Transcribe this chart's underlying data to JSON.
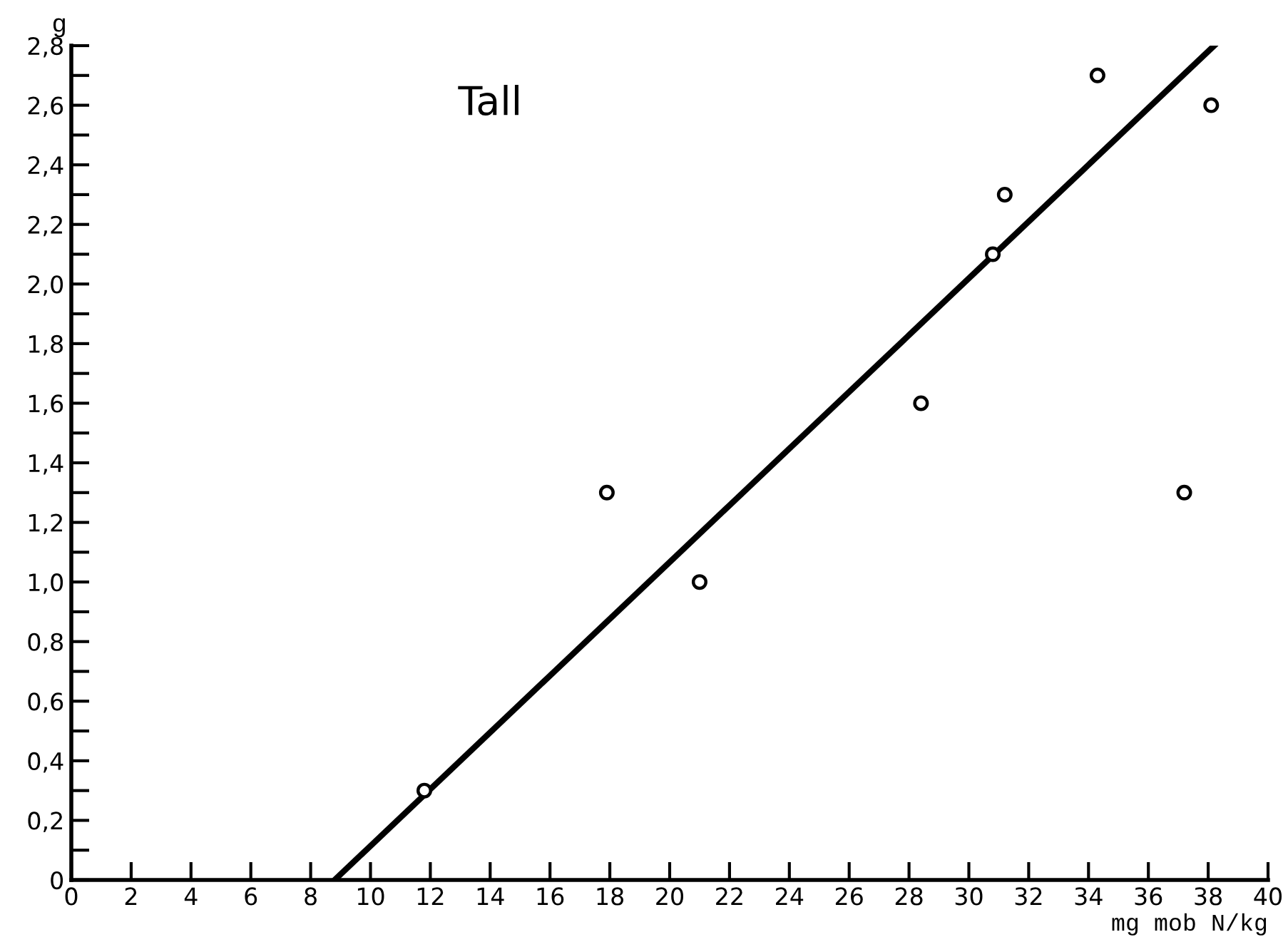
{
  "chart_data": {
    "type": "scatter",
    "title": "Tall",
    "xlabel": "mg mob N/kg",
    "ylabel": "g",
    "series": [
      {
        "color": "#000000",
        "marker": "circle",
        "x": [
          11.8,
          17.9,
          21.0,
          28.4,
          30.8,
          31.2,
          34.3,
          37.2,
          38.1
        ],
        "values": [
          0.3,
          1.3,
          1.0,
          1.6,
          2.1,
          2.3,
          2.7,
          1.3,
          2.6
        ]
      },
      {
        "type": "line",
        "color": "#000000",
        "x": [
          8.8,
          38.2
        ],
        "values": [
          0.0,
          2.8
        ]
      }
    ],
    "xlim": [
      0,
      40
    ],
    "ylim": [
      0,
      2.8
    ],
    "xticks": [
      0,
      2,
      4,
      6,
      8,
      10,
      12,
      14,
      16,
      18,
      20,
      22,
      24,
      26,
      28,
      30,
      32,
      34,
      36,
      38,
      40
    ],
    "yticks": [
      {
        "value": 0,
        "label": "0"
      },
      {
        "value": 0.1,
        "label": null
      },
      {
        "value": 0.2,
        "label": "0,2"
      },
      {
        "value": 0.3,
        "label": null
      },
      {
        "value": 0.4,
        "label": "0,4"
      },
      {
        "value": 0.5,
        "label": null
      },
      {
        "value": 0.6,
        "label": "0,6"
      },
      {
        "value": 0.7,
        "label": null
      },
      {
        "value": 0.8,
        "label": "0,8"
      },
      {
        "value": 0.9,
        "label": null
      },
      {
        "value": 1.0,
        "label": "1,0"
      },
      {
        "value": 1.1,
        "label": null
      },
      {
        "value": 1.2,
        "label": "1,2"
      },
      {
        "value": 1.3,
        "label": null
      },
      {
        "value": 1.4,
        "label": "1,4"
      },
      {
        "value": 1.5,
        "label": null
      },
      {
        "value": 1.6,
        "label": "1,6"
      },
      {
        "value": 1.7,
        "label": null
      },
      {
        "value": 1.8,
        "label": "1,8"
      },
      {
        "value": 1.9,
        "label": null
      },
      {
        "value": 2.0,
        "label": "2,0"
      },
      {
        "value": 2.1,
        "label": null
      },
      {
        "value": 2.2,
        "label": "2,2"
      },
      {
        "value": 2.3,
        "label": null
      },
      {
        "value": 2.4,
        "label": "2,4"
      },
      {
        "value": 2.5,
        "label": null
      },
      {
        "value": 2.6,
        "label": "2,6"
      },
      {
        "value": 2.7,
        "label": null
      },
      {
        "value": 2.8,
        "label": "2,8"
      }
    ],
    "grid": false,
    "legend": false
  }
}
